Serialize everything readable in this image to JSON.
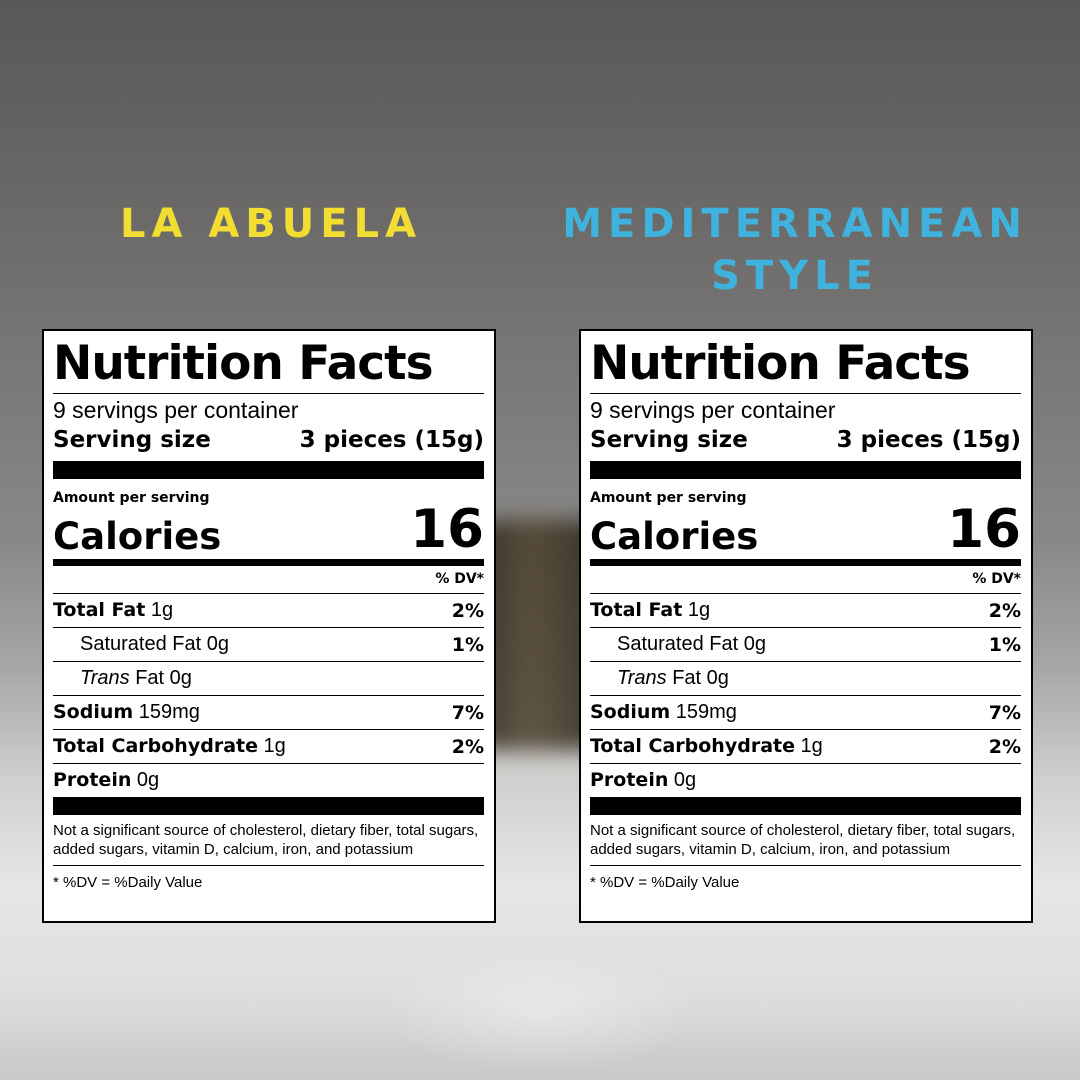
{
  "brands": {
    "left": "LA ABUELA",
    "right_line1": "MEDITERRANEAN",
    "right_line2": "STYLE"
  },
  "colors": {
    "left_brand": "#f2dd33",
    "right_brand": "#3fb3dd"
  },
  "label": {
    "title": "Nutrition Facts",
    "servings": "9 servings per container",
    "serving_size_label": "Serving size",
    "serving_size_value": "3 pieces (15g)",
    "amount_per_serving": "Amount per serving",
    "calories_label": "Calories",
    "calories_value": "16",
    "dv_header": "% DV*",
    "total_fat_label": "Total Fat",
    "total_fat_amount": "1g",
    "total_fat_dv": "2%",
    "sat_fat_label": "Saturated Fat",
    "sat_fat_amount": "0g",
    "sat_fat_dv": "1%",
    "trans_fat_italic": "Trans",
    "trans_fat_label": "Fat",
    "trans_fat_amount": "0g",
    "sodium_label": "Sodium",
    "sodium_amount": "159mg",
    "sodium_dv": "7%",
    "carb_label": "Total Carbohydrate",
    "carb_amount": "1g",
    "carb_dv": "2%",
    "protein_label": "Protein",
    "protein_amount": "0g",
    "footnote": "Not a significant source of cholesterol, dietary fiber, total sugars, added sugars, vitamin D, calcium, iron, and potassium",
    "dv_note": "* %DV = %Daily Value"
  }
}
